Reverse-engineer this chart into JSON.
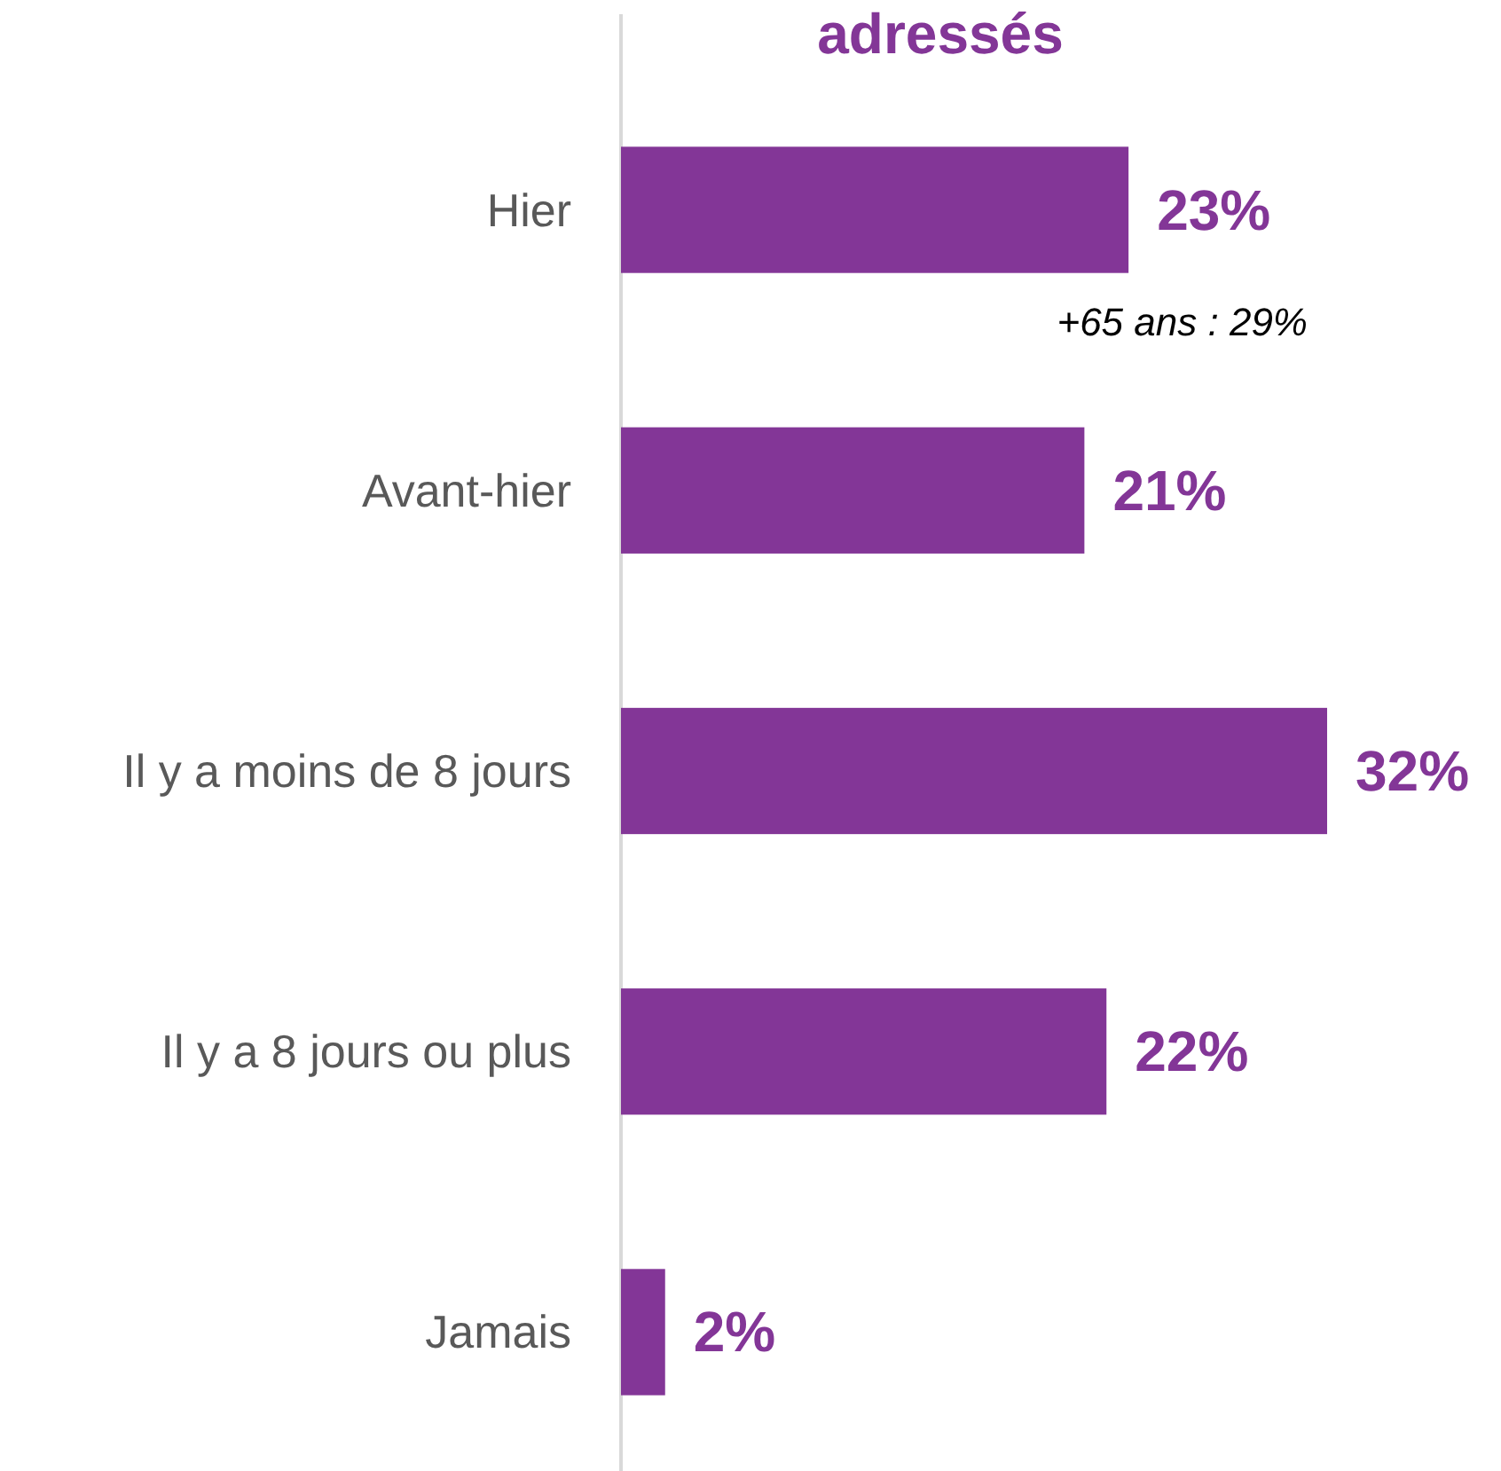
{
  "chart_data": {
    "type": "bar",
    "orientation": "horizontal",
    "title": "adressés",
    "categories": [
      "Hier",
      "Avant-hier",
      "Il y a moins de 8 jours",
      "Il y a 8 jours ou plus",
      "Jamais"
    ],
    "values": [
      23,
      21,
      32,
      22,
      2
    ],
    "value_labels": [
      "23%",
      "21%",
      "32%",
      "22%",
      "2%"
    ],
    "color": "#833697",
    "annotations": [
      "+65 ans : 29%"
    ]
  }
}
